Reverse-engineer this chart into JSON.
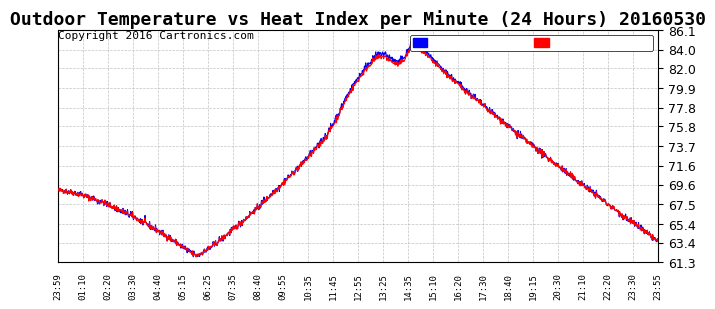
{
  "title": "Outdoor Temperature vs Heat Index per Minute (24 Hours) 20160530",
  "copyright": "Copyright 2016 Cartronics.com",
  "ylim": [
    61.3,
    86.1
  ],
  "yticks": [
    86.1,
    84.0,
    82.0,
    79.9,
    77.8,
    75.8,
    73.7,
    71.6,
    69.6,
    67.5,
    65.4,
    63.4,
    61.3
  ],
  "temp_color": "#ff0000",
  "heat_color": "#0000ff",
  "bg_color": "#ffffff",
  "grid_color": "#aaaaaa",
  "title_fontsize": 13,
  "copyright_fontsize": 8,
  "xtick_fontsize": 6.5,
  "ytick_fontsize": 9,
  "x_labels": [
    "23:59",
    "01:10",
    "02:20",
    "03:30",
    "04:40",
    "05:15",
    "06:25",
    "07:35",
    "08:40",
    "09:55",
    "10:35",
    "11:45",
    "12:55",
    "13:25",
    "14:35",
    "15:10",
    "16:20",
    "17:30",
    "18:40",
    "19:15",
    "20:30",
    "21:10",
    "22:20",
    "23:30",
    "23:55"
  ]
}
